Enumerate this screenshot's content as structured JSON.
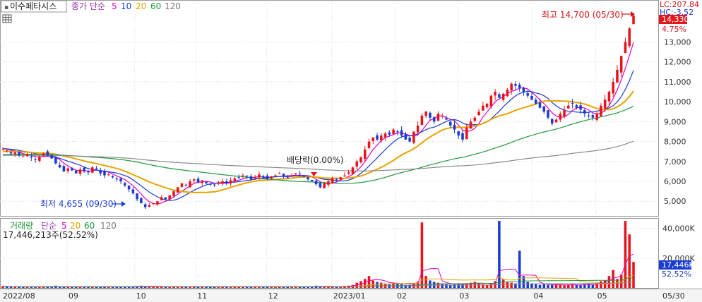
{
  "header": {
    "stock_name": "이수페타시스",
    "price_ma_label": "종가 단순",
    "ma_periods": [
      "5",
      "10",
      "20",
      "60",
      "120"
    ],
    "ma_colors": [
      "#e400c7",
      "#1c3ad8",
      "#e8a300",
      "#1f9a3a",
      "#8a8a8a"
    ]
  },
  "volume_header": {
    "volume_label": "거래량",
    "ma_label": "단순",
    "ma_periods": [
      "5",
      "20",
      "60",
      "120"
    ],
    "value_text": "17,446,213주(52.52%)"
  },
  "annotations": {
    "high": "최고 14,700 (05/30)",
    "low": "최저 4,655 (09/30)",
    "dividend": "배당락(0.00%)"
  },
  "right_axis": {
    "top_small_1": "LC:207.84",
    "top_small_2": "HC:-3.52",
    "price_box": "14,330",
    "pct_text": "4.75%",
    "price_ticks": [
      "13,000",
      "12,000",
      "11,000",
      "10,000",
      "9,000",
      "8,000",
      "7,000",
      "6,000",
      "5,000"
    ],
    "volume_ticks": [
      "40,000K",
      "20,000K"
    ],
    "volume_box": "17,446K",
    "volume_pct": "52.52%"
  },
  "x_axis": {
    "labels": [
      "2022/08",
      "09",
      "10",
      "11",
      "12",
      "2023/01",
      "02",
      "03",
      "04",
      "05",
      "05/30"
    ]
  },
  "colors": {
    "up": "#e8141a",
    "down": "#1a3bd1",
    "grid": "#d9d9d9",
    "price_box_bg": "#e8141a",
    "volume_box_bg": "#1a3bd1"
  },
  "chart_data": {
    "type": "candlestick",
    "x_range": [
      "2022/08",
      "2023/05/30"
    ],
    "price_ylim": [
      4300,
      15000
    ],
    "volume_ylim": [
      0,
      46000
    ],
    "volume_unit": "K",
    "high": {
      "value": 14700,
      "date": "05/30"
    },
    "low": {
      "value": 4655,
      "date": "09/30"
    },
    "last_close": 14330,
    "last_change_pct": 4.75,
    "last_volume": 17446,
    "close_trend": [
      7600,
      7550,
      7400,
      7450,
      7300,
      7250,
      7350,
      7200,
      7100,
      7250,
      7400,
      7300,
      7150,
      6900,
      6700,
      6500,
      6650,
      6550,
      6400,
      6600,
      6500,
      6450,
      6700,
      6600,
      6400,
      6300,
      6350,
      6200,
      6100,
      6000,
      5800,
      5600,
      5400,
      5100,
      4900,
      4700,
      4800,
      4900,
      5000,
      5200,
      5100,
      5300,
      5500,
      5700,
      5900,
      5800,
      6000,
      6100,
      5950,
      6050,
      5900,
      5850,
      5800,
      5950,
      6000,
      5900,
      6050,
      6150,
      6200,
      6300,
      6250,
      6100,
      6200,
      6350,
      6200,
      6100,
      6250,
      6300,
      6400,
      6250,
      6200,
      6300,
      6400,
      6350,
      6250,
      6100,
      6000,
      5850,
      5700,
      5900,
      6000,
      6150,
      6100,
      6200,
      6300,
      6450,
      6700,
      7000,
      7200,
      7600,
      8000,
      8200,
      8100,
      8300,
      8400,
      8350,
      8600,
      8500,
      8300,
      8100,
      8000,
      8500,
      8800,
      9300,
      9500,
      9200,
      9000,
      9400,
      9300,
      9100,
      8800,
      8600,
      8300,
      8100,
      8700,
      9000,
      9200,
      9500,
      9800,
      9900,
      10300,
      10500,
      10200,
      10400,
      10600,
      10900,
      10800,
      10700,
      10500,
      10300,
      10100,
      9900,
      9700,
      9500,
      9200,
      8900,
      9100,
      9400,
      9600,
      9800,
      9900,
      9700,
      9600,
      9400,
      9300,
      9200,
      9400,
      9800,
      10100,
      10500,
      11000,
      11600,
      12300,
      13000,
      13680,
      14330
    ],
    "volume_trend": [
      1200,
      900,
      700,
      800,
      1100,
      600,
      500,
      900,
      700,
      800,
      1000,
      600,
      700,
      1500,
      800,
      900,
      600,
      700,
      800,
      650,
      700,
      600,
      1100,
      700,
      900,
      800,
      700,
      600,
      900,
      1000,
      1200,
      900,
      800,
      1300,
      1500,
      1100,
      900,
      1000,
      1200,
      900,
      800,
      700,
      900,
      1000,
      1100,
      800,
      700,
      900,
      600,
      700,
      800,
      900,
      700,
      600,
      800,
      700,
      900,
      1000,
      800,
      700,
      600,
      700,
      800,
      900,
      700,
      600,
      800,
      900,
      1000,
      700,
      600,
      800,
      900,
      700,
      600,
      800,
      1000,
      1500,
      1200,
      900,
      800,
      1000,
      900,
      1100,
      1300,
      1500,
      2000,
      3500,
      4500,
      6000,
      8000,
      5000,
      4000,
      3500,
      3000,
      2500,
      3500,
      3000,
      2500,
      2000,
      2000,
      3000,
      4200,
      44000,
      8000,
      5000,
      4000,
      3500,
      3000,
      2500,
      2000,
      2500,
      3000,
      2500,
      3000,
      3500,
      4000,
      3000,
      2500,
      2000,
      3000,
      4500,
      45000,
      6000,
      4000,
      3500,
      3000,
      25000,
      8000,
      4000,
      3000,
      2500,
      2000,
      2500,
      2000,
      2000,
      2500,
      2000,
      1800,
      2000,
      2500,
      2000,
      1800,
      2500,
      3000,
      2000,
      3000,
      4500,
      5000,
      8000,
      12000,
      6000,
      9000,
      45000,
      36000,
      17446
    ]
  }
}
